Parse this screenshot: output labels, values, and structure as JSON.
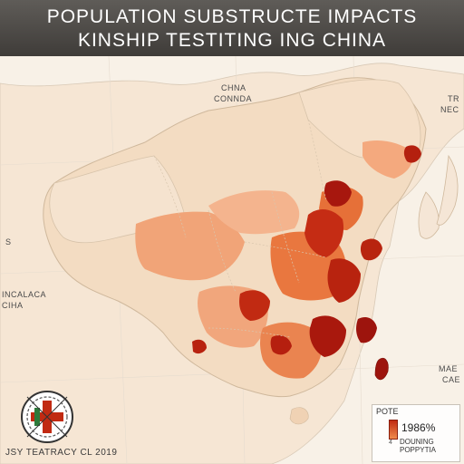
{
  "title": {
    "line1": "POPULATION SUBSTRUCTE IMPACTS",
    "line2": "KINSHIP TESTITING ING CHINA"
  },
  "map_labels": {
    "top_center_1": "CHNA",
    "top_center_2": "CONNDA",
    "top_right_1": "TR",
    "top_right_2": "NEC",
    "left_mid_1": "INCALACA",
    "left_mid_2": "CIHA",
    "right_low_1": "MAE",
    "right_low_2": "CAE",
    "left_small": "S"
  },
  "legend": {
    "title": "POTE",
    "value": "1986%",
    "note_line1": "DOUNING",
    "note_line2": "POPPYTIA",
    "mark": "4"
  },
  "footer": "JSY TEATRACY CL 2019",
  "colors": {
    "background": "#f7efe4",
    "land_base": "#f3dcc2",
    "low": "#f4b08a",
    "mid": "#e9763f",
    "high": "#c32a12",
    "highest": "#9d140d",
    "sea": "#f4f1ec"
  },
  "icons": [
    "emblem-icon",
    "compass-icon"
  ]
}
